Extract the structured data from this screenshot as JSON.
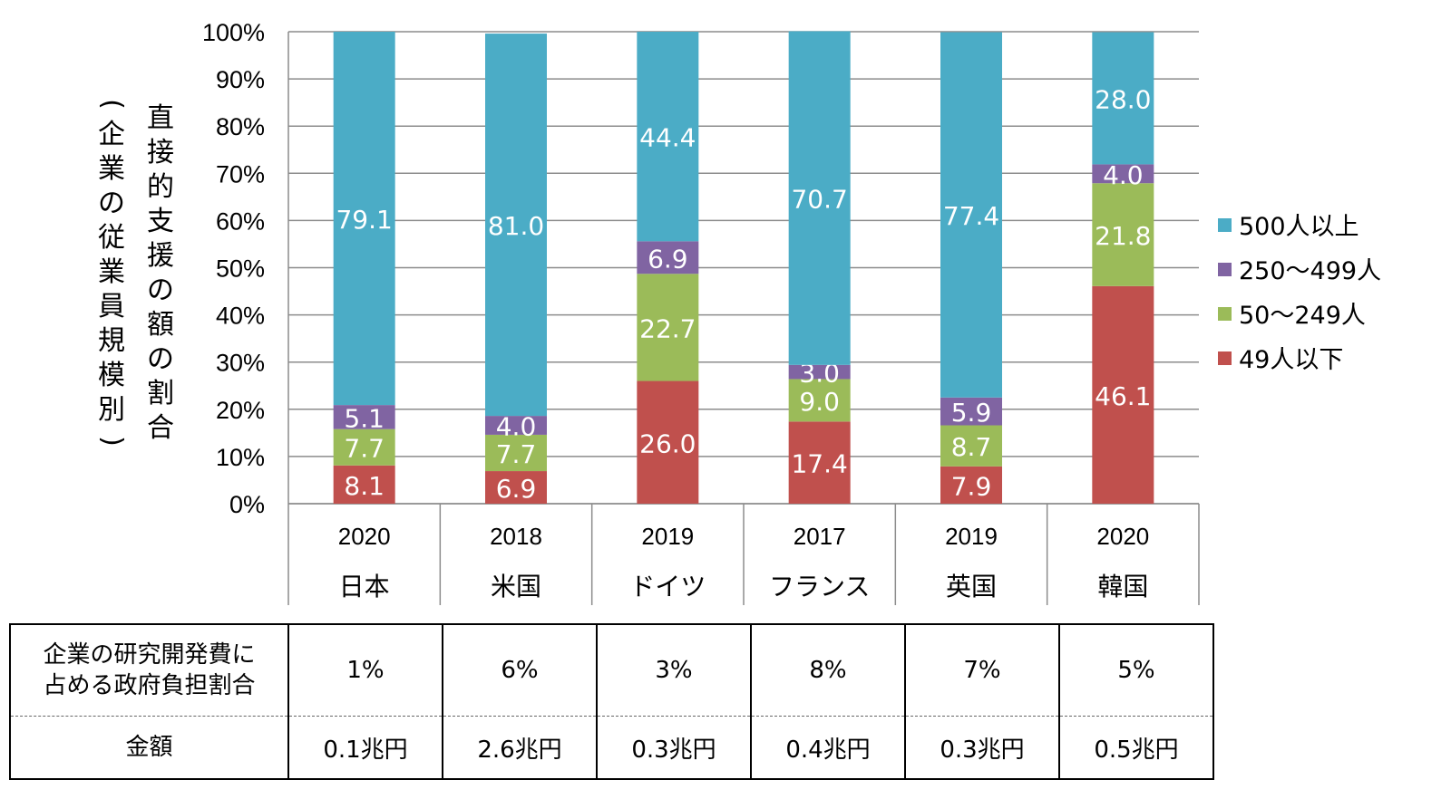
{
  "chart_data": {
    "type": "bar",
    "stacked": true,
    "percent": true,
    "ylabel": "直接的支援の額の割合",
    "ylabel_sub": "企業の従業員規模別",
    "yticks": [
      "0%",
      "10%",
      "20%",
      "30%",
      "40%",
      "50%",
      "60%",
      "70%",
      "80%",
      "90%",
      "100%"
    ],
    "ylim": [
      0,
      100
    ],
    "grid": true,
    "legend_position": "right",
    "categories": [
      {
        "year": "2020",
        "country": "日本"
      },
      {
        "year": "2018",
        "country": "米国"
      },
      {
        "year": "2019",
        "country": "ドイツ"
      },
      {
        "year": "2017",
        "country": "フランス"
      },
      {
        "year": "2019",
        "country": "英国"
      },
      {
        "year": "2020",
        "country": "韓国"
      }
    ],
    "series": [
      {
        "name": "49人以下",
        "color": "#c0504d",
        "values": [
          8.1,
          6.9,
          26.0,
          17.4,
          7.9,
          46.1
        ],
        "labels": [
          "8.1",
          "6.9",
          "26.0",
          "17.4",
          "7.9",
          "46.1"
        ]
      },
      {
        "name": "50～249人",
        "color": "#9bbb59",
        "values": [
          7.7,
          7.7,
          22.7,
          9.0,
          8.7,
          21.8
        ],
        "labels": [
          "7.7",
          "7.7",
          "22.7",
          "9.0",
          "8.7",
          "21.8"
        ]
      },
      {
        "name": "250～499人",
        "color": "#8064a2",
        "values": [
          5.1,
          4.0,
          6.9,
          3.0,
          5.9,
          4.0
        ],
        "labels": [
          "5.1",
          "4.0",
          "6.9",
          "3.0",
          "5.9",
          "4.0"
        ]
      },
      {
        "name": "500人以上",
        "color": "#4bacc6",
        "values": [
          79.1,
          81.0,
          44.4,
          70.7,
          77.4,
          28.0
        ],
        "labels": [
          "79.1",
          "81.0",
          "44.4",
          "70.7",
          "77.4",
          "28.0"
        ]
      }
    ],
    "legend_order": [
      "500人以上",
      "250～499人",
      "50～249人",
      "49人以下"
    ]
  },
  "table": {
    "row1_label": "企業の研究開発費に占める政府負担割合",
    "row1_label_lines": [
      "企業の研究開発費に",
      "占める政府負担割合"
    ],
    "row1_values": [
      "1%",
      "6%",
      "3%",
      "8%",
      "7%",
      "5%"
    ],
    "row2_label": "金額",
    "row2_values": [
      "0.1兆円",
      "2.6兆円",
      "0.3兆円",
      "0.4兆円",
      "0.3兆円",
      "0.5兆円"
    ]
  }
}
